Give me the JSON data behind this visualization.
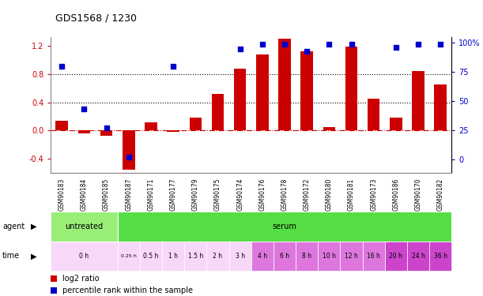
{
  "title": "GDS1568 / 1230",
  "samples": [
    "GSM90183",
    "GSM90184",
    "GSM90185",
    "GSM90187",
    "GSM90171",
    "GSM90177",
    "GSM90179",
    "GSM90175",
    "GSM90174",
    "GSM90176",
    "GSM90178",
    "GSM90172",
    "GSM90180",
    "GSM90181",
    "GSM90173",
    "GSM90186",
    "GSM90170",
    "GSM90182"
  ],
  "log2_ratio": [
    0.14,
    -0.04,
    -0.07,
    -0.55,
    0.12,
    -0.02,
    0.18,
    0.52,
    0.87,
    1.07,
    1.3,
    1.12,
    0.05,
    1.18,
    0.45,
    0.18,
    0.84,
    0.65
  ],
  "percentile_values": [
    80,
    43,
    27,
    2,
    null,
    80,
    null,
    null,
    95,
    99,
    99,
    93,
    99,
    99,
    null,
    96,
    99,
    99
  ],
  "bar_color": "#cc0000",
  "dot_color": "#0000cc",
  "agent_groups": [
    {
      "label": "untreated",
      "start": 0,
      "end": 3,
      "color": "#99ee77"
    },
    {
      "label": "serum",
      "start": 3,
      "end": 18,
      "color": "#55dd44"
    }
  ],
  "time_spans": [
    {
      "label": "0 h",
      "start": 0,
      "end": 3,
      "color": "#f8d8f8"
    },
    {
      "label": "0.25 h",
      "start": 3,
      "end": 4,
      "color": "#f8d8f8"
    },
    {
      "label": "0.5 h",
      "start": 4,
      "end": 5,
      "color": "#f8d8f8"
    },
    {
      "label": "1 h",
      "start": 5,
      "end": 6,
      "color": "#f8d8f8"
    },
    {
      "label": "1.5 h",
      "start": 6,
      "end": 7,
      "color": "#f8d8f8"
    },
    {
      "label": "2 h",
      "start": 7,
      "end": 8,
      "color": "#f8d8f8"
    },
    {
      "label": "3 h",
      "start": 8,
      "end": 9,
      "color": "#f8d8f8"
    },
    {
      "label": "4 h",
      "start": 9,
      "end": 10,
      "color": "#dd77dd"
    },
    {
      "label": "6 h",
      "start": 10,
      "end": 11,
      "color": "#dd77dd"
    },
    {
      "label": "8 h",
      "start": 11,
      "end": 12,
      "color": "#dd77dd"
    },
    {
      "label": "10 h",
      "start": 12,
      "end": 13,
      "color": "#dd77dd"
    },
    {
      "label": "12 h",
      "start": 13,
      "end": 14,
      "color": "#dd77dd"
    },
    {
      "label": "16 h",
      "start": 14,
      "end": 15,
      "color": "#dd77dd"
    },
    {
      "label": "20 h",
      "start": 15,
      "end": 16,
      "color": "#cc44cc"
    },
    {
      "label": "24 h",
      "start": 16,
      "end": 17,
      "color": "#cc44cc"
    },
    {
      "label": "36 h",
      "start": 17,
      "end": 18,
      "color": "#cc44cc"
    }
  ],
  "legend_red": "log2 ratio",
  "legend_blue": "percentile rank within the sample",
  "hlines": [
    0.4,
    0.8
  ],
  "yticks_left": [
    -0.4,
    0.0,
    0.4,
    0.8,
    1.2
  ],
  "yticks_right": [
    0,
    25,
    50,
    75,
    100
  ],
  "ylim_left": [
    -0.6,
    1.32
  ],
  "ylim_right": [
    -12,
    105
  ],
  "title_fontsize": 9,
  "tick_fontsize": 7,
  "bar_width": 0.55
}
